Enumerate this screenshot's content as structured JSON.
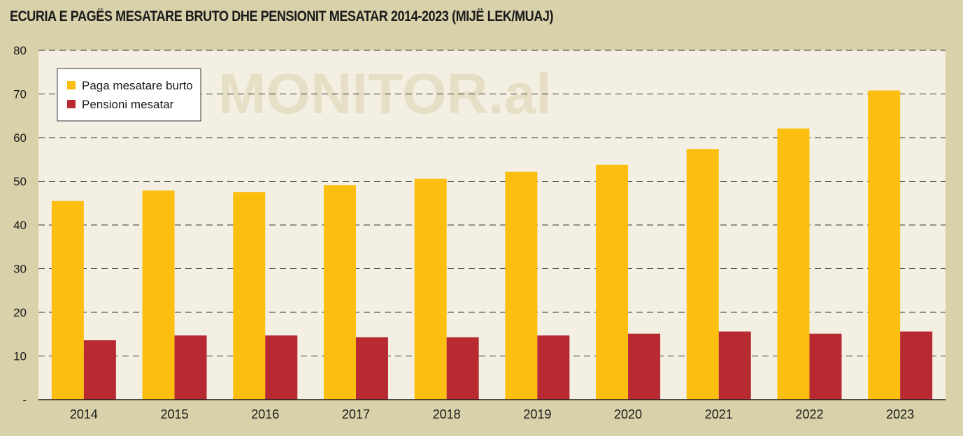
{
  "title": "ECURIA E PAGËS MESATARE BRUTO DHE PENSIONIT MESATAR 2014-2023 (MIJË LEK/MUAJ)",
  "watermark": "MONITOR.al",
  "colors": {
    "background": "#d8d1aa",
    "plot_background": "#f3efe2",
    "series_wage": "#fcbf10",
    "series_pension": "#b82a32",
    "grid": "#333333"
  },
  "chart_data": {
    "type": "bar",
    "categories": [
      "2014",
      "2015",
      "2016",
      "2017",
      "2018",
      "2019",
      "2020",
      "2021",
      "2022",
      "2023"
    ],
    "series": [
      {
        "name": "Paga mesatare burto",
        "values": [
          45.5,
          47.9,
          47.5,
          49.1,
          50.6,
          52.2,
          53.8,
          57.4,
          62.1,
          70.8
        ]
      },
      {
        "name": "Pensioni mesatar",
        "values": [
          13.6,
          14.7,
          14.7,
          14.3,
          14.3,
          14.7,
          15.1,
          15.6,
          15.1,
          15.6
        ]
      }
    ],
    "ylim": [
      0,
      80
    ],
    "yticks": [
      "-",
      "10",
      "20",
      "30",
      "40",
      "50",
      "60",
      "70",
      "80"
    ],
    "grid": true,
    "legend": "top-left"
  }
}
